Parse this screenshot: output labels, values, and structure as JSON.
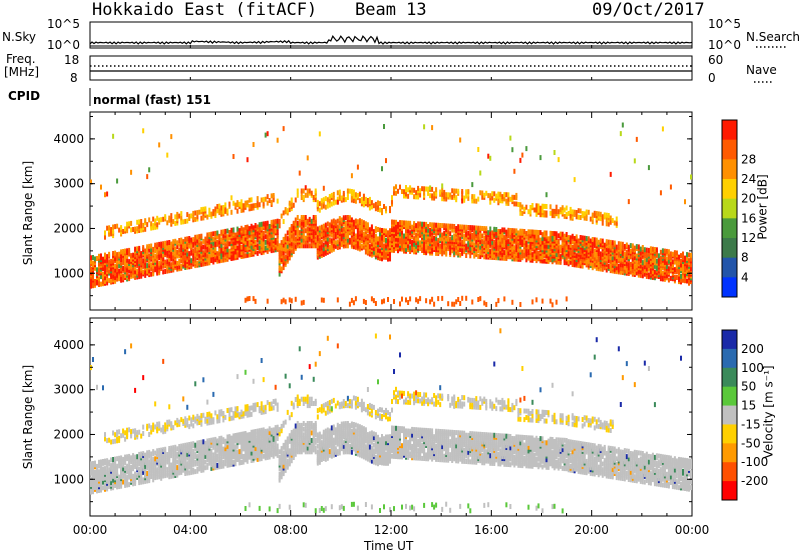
{
  "header": {
    "station": "Hokkaido East (fitACF)",
    "beam": "Beam 13",
    "date": "09/Oct/2017"
  },
  "noise_panel": {
    "left_label": "N.Sky",
    "right_label": "N.Search",
    "left_ticks": [
      "10^5",
      "10^0"
    ],
    "right_ticks": [
      "10^5",
      "10^0"
    ]
  },
  "freq_panel": {
    "left_label_1": "Freq.",
    "left_label_2": "[MHz]",
    "left_ticks": [
      "18",
      "8"
    ],
    "right_ticks": [
      "60",
      "0"
    ],
    "right_label": "Nave"
  },
  "cpid": {
    "label": "CPID",
    "mode": "normal (fast) 151"
  },
  "chart_data": [
    {
      "type": "heatmap",
      "name": "Power",
      "ylabel": "Slant Range [km]",
      "y_ticks": [
        "1000",
        "2000",
        "3000",
        "4000"
      ],
      "colorbar_label": "Power [dB]",
      "colorbar_ticks": [
        "4",
        "8",
        "12",
        "16",
        "20",
        "24",
        "28"
      ],
      "colors": [
        "#0033ff",
        "#2255aa",
        "#3c7a4a",
        "#4a9a3c",
        "#b8d81a",
        "#ffd000",
        "#ff9000",
        "#ff5a00",
        "#ff1a00"
      ],
      "ylim": [
        180,
        4600
      ],
      "xlim": [
        0,
        24
      ]
    },
    {
      "type": "heatmap",
      "name": "Velocity",
      "ylabel": "Slant Range [km]",
      "y_ticks": [
        "1000",
        "2000",
        "3000",
        "4000"
      ],
      "colorbar_label": "Velocity [m s⁻¹]",
      "colorbar_ticks": [
        "200",
        "100",
        "50",
        "15",
        "-15",
        "-50",
        "-100",
        "-200"
      ],
      "colors": [
        "#1a2aa8",
        "#2a6ab0",
        "#3a8a5a",
        "#5ac83a",
        "#c0c0c0",
        "#ffd000",
        "#ff9a00",
        "#ff5000",
        "#ff0000"
      ],
      "ylim": [
        180,
        4600
      ],
      "xlim": [
        0,
        24
      ]
    }
  ],
  "x_axis": {
    "ticks": [
      "00:00",
      "04:00",
      "08:00",
      "12:00",
      "16:00",
      "20:00",
      "00:00"
    ],
    "label": "Time UT"
  }
}
